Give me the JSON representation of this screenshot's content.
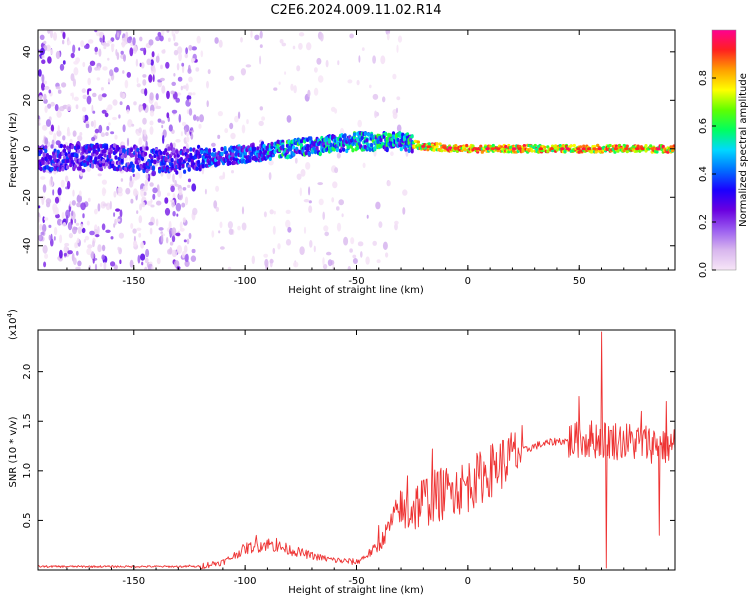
{
  "title": "C2E6.2024.009.11.02.R14",
  "chart_data": [
    {
      "type": "heatmap",
      "xlabel": "Height of straight line (km)",
      "ylabel": "Frequency (Hz)",
      "xlim": [
        -193,
        93
      ],
      "ylim": [
        -50,
        49
      ],
      "xticks": [
        -150,
        -100,
        -50,
        0,
        50
      ],
      "yticks": [
        -40,
        -20,
        0,
        20,
        40
      ],
      "colorbar": {
        "label": "Normalized spectral amplitude",
        "range": [
          0.0,
          1.0
        ],
        "ticks": [
          "0.0",
          "0.2",
          "0.4",
          "0.6",
          "0.8"
        ],
        "colormap": [
          "#f7e6f7",
          "#d8b6ee",
          "#9a5cf0",
          "#6a00e0",
          "#1a00ff",
          "#0070ff",
          "#00d8ff",
          "#00ff60",
          "#60ff00",
          "#ffff00",
          "#ffa000",
          "#ff2020",
          "#ff0090"
        ]
      },
      "ridge": {
        "x": [
          -190,
          -170,
          -150,
          -130,
          -110,
          -90,
          -70,
          -50,
          -30,
          -20,
          0,
          30,
          60,
          90
        ],
        "y": [
          -4,
          -3,
          -4,
          -5,
          -3,
          -1,
          1,
          3,
          3,
          1,
          0,
          0,
          0,
          0
        ]
      },
      "noise_region_x": [
        -193,
        -122
      ],
      "grid": false
    },
    {
      "type": "line",
      "xlabel": "Height of straight line (km)",
      "ylabel": "SNR (10 * v/v)",
      "yscale_note": "(x10",
      "yscale_exp": "4",
      "xlim": [
        -193,
        93
      ],
      "ylim": [
        0,
        2.42
      ],
      "xticks": [
        -150,
        -100,
        -50,
        0,
        50
      ],
      "yticks": [
        "0.5",
        "1.0",
        "1.5",
        "2.0"
      ],
      "color": "#ee3333",
      "envelope": {
        "x": [
          -193,
          -120,
          -110,
          -100,
          -90,
          -80,
          -70,
          -60,
          -50,
          -40,
          -30,
          -20,
          -10,
          0,
          10,
          20,
          30,
          40,
          50,
          55,
          60,
          70,
          80,
          93
        ],
        "y": [
          0.02,
          0.02,
          0.06,
          0.18,
          0.22,
          0.17,
          0.12,
          0.08,
          0.06,
          0.2,
          0.55,
          0.7,
          0.78,
          0.85,
          1.0,
          1.15,
          1.25,
          1.3,
          1.3,
          1.32,
          1.32,
          1.3,
          1.28,
          1.25
        ]
      },
      "spikes": [
        {
          "x": -125,
          "y": 0.05
        },
        {
          "x": -95,
          "y": 0.35
        },
        {
          "x": -86,
          "y": 0.32
        },
        {
          "x": -40,
          "y": 0.45
        },
        {
          "x": -27,
          "y": 0.95
        },
        {
          "x": -16,
          "y": 1.22
        },
        {
          "x": -7,
          "y": 0.88
        },
        {
          "x": 3,
          "y": 1.02
        },
        {
          "x": 12,
          "y": 1.1
        },
        {
          "x": 20,
          "y": 1.2
        },
        {
          "x": 50,
          "y": 1.75
        },
        {
          "x": 60,
          "y": 2.4
        },
        {
          "x": 62,
          "y": 0.02
        },
        {
          "x": 78,
          "y": 1.6
        },
        {
          "x": 86,
          "y": 0.35
        },
        {
          "x": 89,
          "y": 1.7
        }
      ],
      "grid": false
    }
  ]
}
